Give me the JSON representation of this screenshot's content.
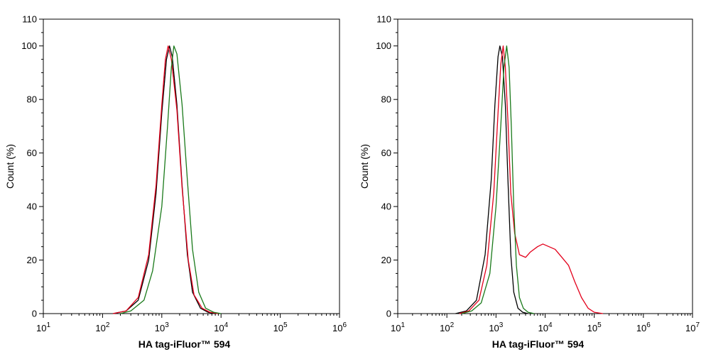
{
  "chart_data": [
    {
      "type": "line",
      "xlabel": "HA tag-iFluor™ 594",
      "ylabel": "Count  (%)",
      "xscale": "log",
      "xlim": [
        10,
        1000000
      ],
      "ylim": [
        0,
        110
      ],
      "xticks": [
        {
          "base": "10",
          "exp": "1"
        },
        {
          "base": "10",
          "exp": "2"
        },
        {
          "base": "10",
          "exp": "3"
        },
        {
          "base": "10",
          "exp": "4"
        },
        {
          "base": "10",
          "exp": "5"
        },
        {
          "base": "10",
          "exp": "6"
        }
      ],
      "yticks": [
        "0",
        "20",
        "40",
        "60",
        "80",
        "100",
        "110"
      ],
      "grid": false,
      "series": [
        {
          "color": "#000000",
          "points": [
            [
              150,
              0
            ],
            [
              250,
              1
            ],
            [
              400,
              5
            ],
            [
              600,
              20
            ],
            [
              800,
              45
            ],
            [
              1000,
              75
            ],
            [
              1200,
              95
            ],
            [
              1350,
              100
            ],
            [
              1500,
              96
            ],
            [
              1800,
              78
            ],
            [
              2200,
              48
            ],
            [
              2700,
              22
            ],
            [
              3300,
              8
            ],
            [
              4500,
              2
            ],
            [
              6000,
              0.5
            ],
            [
              8000,
              0
            ]
          ]
        },
        {
          "color": "#e3001b",
          "points": [
            [
              150,
              0
            ],
            [
              250,
              1
            ],
            [
              400,
              6
            ],
            [
              600,
              22
            ],
            [
              800,
              48
            ],
            [
              1000,
              78
            ],
            [
              1150,
              95
            ],
            [
              1280,
              100
            ],
            [
              1450,
              95
            ],
            [
              1800,
              76
            ],
            [
              2200,
              47
            ],
            [
              2800,
              20
            ],
            [
              3500,
              7
            ],
            [
              4800,
              2
            ],
            [
              6500,
              0.5
            ],
            [
              9000,
              0
            ]
          ]
        },
        {
          "color": "#1a7a1a",
          "points": [
            [
              200,
              0
            ],
            [
              300,
              1
            ],
            [
              500,
              5
            ],
            [
              700,
              16
            ],
            [
              1000,
              40
            ],
            [
              1250,
              70
            ],
            [
              1450,
              92
            ],
            [
              1600,
              100
            ],
            [
              1800,
              97
            ],
            [
              2200,
              78
            ],
            [
              2700,
              50
            ],
            [
              3300,
              24
            ],
            [
              4200,
              8
            ],
            [
              5500,
              2
            ],
            [
              7500,
              0.5
            ],
            [
              10000,
              0
            ]
          ]
        }
      ]
    },
    {
      "type": "line",
      "xlabel": "HA tag-iFluor™ 594",
      "ylabel": "Count  (%)",
      "xscale": "log",
      "xlim": [
        10,
        10000000
      ],
      "ylim": [
        0,
        110
      ],
      "xticks": [
        {
          "base": "10",
          "exp": "1"
        },
        {
          "base": "10",
          "exp": "2"
        },
        {
          "base": "10",
          "exp": "3"
        },
        {
          "base": "10",
          "exp": "4"
        },
        {
          "base": "10",
          "exp": "5"
        },
        {
          "base": "10",
          "exp": "6"
        },
        {
          "base": "10",
          "exp": "7"
        }
      ],
      "yticks": [
        "0",
        "20",
        "40",
        "60",
        "80",
        "100",
        "110"
      ],
      "grid": false,
      "series": [
        {
          "color": "#000000",
          "points": [
            [
              150,
              0
            ],
            [
              250,
              1
            ],
            [
              400,
              5
            ],
            [
              600,
              22
            ],
            [
              800,
              50
            ],
            [
              950,
              78
            ],
            [
              1100,
              96
            ],
            [
              1200,
              100
            ],
            [
              1350,
              96
            ],
            [
              1550,
              78
            ],
            [
              1750,
              50
            ],
            [
              2000,
              22
            ],
            [
              2300,
              8
            ],
            [
              2800,
              2
            ],
            [
              3500,
              0.5
            ],
            [
              4500,
              0
            ]
          ]
        },
        {
          "color": "#e3001b",
          "points": [
            [
              180,
              0
            ],
            [
              280,
              1
            ],
            [
              450,
              5
            ],
            [
              650,
              18
            ],
            [
              900,
              45
            ],
            [
              1100,
              75
            ],
            [
              1250,
              93
            ],
            [
              1400,
              100
            ],
            [
              1550,
              92
            ],
            [
              1750,
              72
            ],
            [
              2000,
              45
            ],
            [
              2400,
              30
            ],
            [
              3000,
              22
            ],
            [
              4000,
              21
            ],
            [
              5000,
              23
            ],
            [
              7000,
              25
            ],
            [
              9000,
              26
            ],
            [
              12000,
              25
            ],
            [
              16000,
              24
            ],
            [
              22000,
              21
            ],
            [
              30000,
              18
            ],
            [
              40000,
              12
            ],
            [
              55000,
              6
            ],
            [
              75000,
              2
            ],
            [
              100000,
              0.5
            ],
            [
              150000,
              0
            ]
          ]
        },
        {
          "color": "#1a7a1a",
          "points": [
            [
              200,
              0
            ],
            [
              320,
              1
            ],
            [
              500,
              4
            ],
            [
              750,
              15
            ],
            [
              1000,
              40
            ],
            [
              1250,
              70
            ],
            [
              1450,
              92
            ],
            [
              1650,
              100
            ],
            [
              1850,
              92
            ],
            [
              2050,
              70
            ],
            [
              2300,
              40
            ],
            [
              2600,
              18
            ],
            [
              3000,
              6
            ],
            [
              3600,
              2
            ],
            [
              4500,
              0.5
            ],
            [
              6000,
              0
            ]
          ]
        }
      ]
    }
  ]
}
